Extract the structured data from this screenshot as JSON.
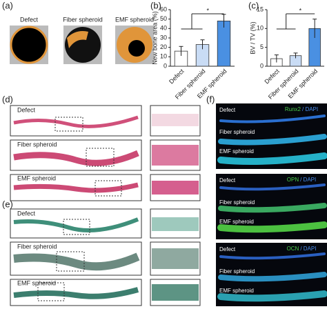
{
  "panel_a": {
    "label": "(a)",
    "groups": [
      "Defect",
      "Fiber spheroid",
      "EMF spheroid"
    ]
  },
  "chart_data": [
    {
      "type": "bar",
      "label": "(b)",
      "y_label": "New bone area (%)",
      "categories": [
        "Defect",
        "Fiber spheroid",
        "EMF spheroid"
      ],
      "values": [
        16,
        23,
        48
      ],
      "errors": [
        5,
        5,
        7
      ],
      "colors": [
        "#ffffff",
        "#c9dcf5",
        "#4a90e2"
      ],
      "ylim": [
        0,
        60
      ],
      "yticks": [
        0,
        10,
        20,
        30,
        40,
        50,
        60
      ],
      "significance": "*"
    },
    {
      "type": "bar",
      "label": "(c)",
      "y_label": "BV / TV (%)",
      "categories": [
        "Defect",
        "Fiber spheroid",
        "EMF spheroid"
      ],
      "values": [
        2,
        2.8,
        10
      ],
      "errors": [
        1,
        0.7,
        2.5
      ],
      "colors": [
        "#ffffff",
        "#c9dcf5",
        "#4a90e2"
      ],
      "ylim": [
        0,
        15
      ],
      "yticks": [
        0,
        5,
        10,
        15
      ],
      "significance": "*"
    }
  ],
  "panel_d": {
    "label": "(d)",
    "rows": [
      "Defect",
      "Fiber spheroid",
      "EMF spheroid"
    ]
  },
  "panel_e": {
    "label": "(e)",
    "rows": [
      "Defect",
      "Fiber spheroid",
      "EMF spheroid"
    ]
  },
  "panel_f": {
    "label": "(f)",
    "blocks": [
      {
        "rows": [
          "Defect",
          "Fiber spheroid",
          "EMF spheroid"
        ],
        "stain": "Runx2",
        "counter": "/ DAPI"
      },
      {
        "rows": [
          "Defect",
          "Fiber spheroid",
          "EMF spheroid"
        ],
        "stain": "OPN",
        "counter": "/ DAPI"
      },
      {
        "rows": [
          "Defect",
          "Fiber spheroid",
          "EMF spheroid"
        ],
        "stain": "OCN",
        "counter": "/ DAPI"
      }
    ]
  }
}
